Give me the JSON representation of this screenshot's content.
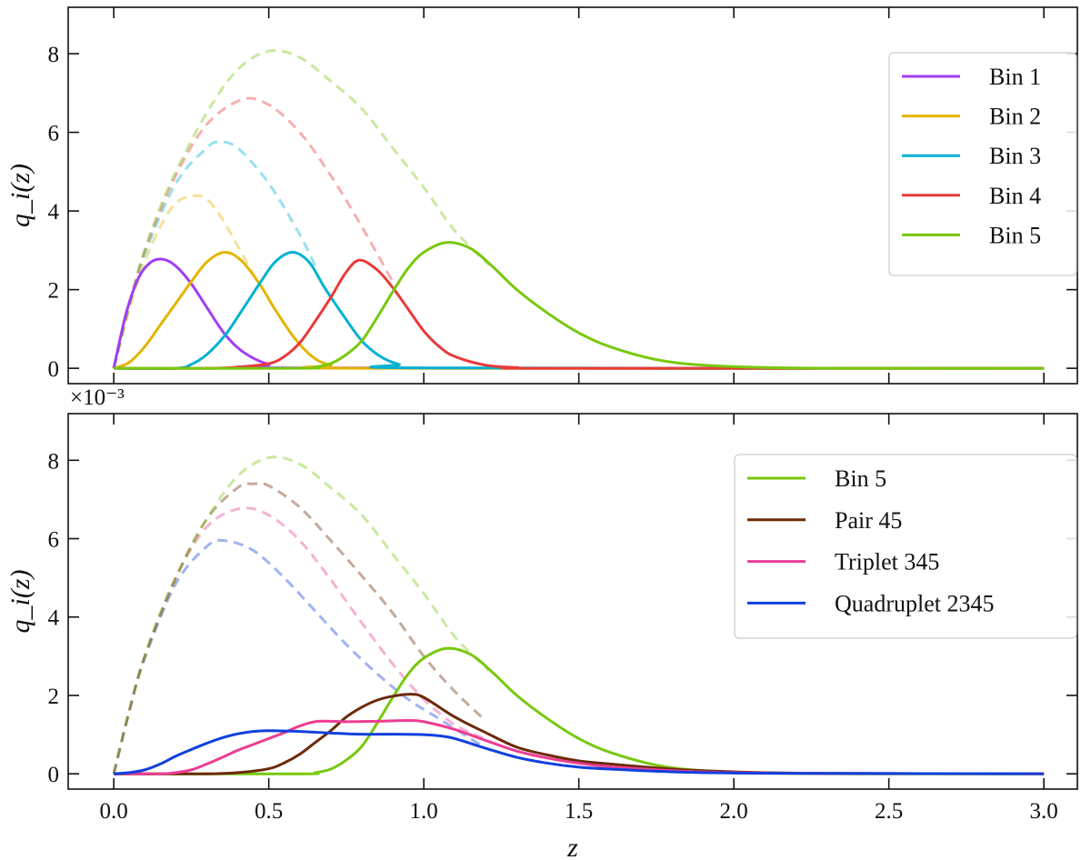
{
  "chart_data": [
    {
      "type": "line",
      "panel": "top",
      "ylabel": "q_i(z)",
      "xlabel": "",
      "offset_text": "×10⁻³",
      "xlim": [
        -0.147,
        3.108
      ],
      "ylim": [
        -0.39,
        9.18
      ],
      "xticks": [
        0.0,
        0.5,
        1.0,
        1.5,
        2.0,
        2.5,
        3.0
      ],
      "xtick_labels": [],
      "yticks": [
        0,
        2,
        4,
        6,
        8
      ],
      "ytick_labels": [
        "0",
        "2",
        "4",
        "6",
        "8"
      ],
      "grid": false,
      "legend": "top-right",
      "series": [
        {
          "name": "Bin 1",
          "color": "#a03cf5",
          "style": "solid",
          "x": [
            0,
            0.04,
            0.08,
            0.12,
            0.16,
            0.2,
            0.25,
            0.3,
            0.36,
            0.42,
            0.5,
            0.6,
            3.0
          ],
          "y": [
            0,
            1.4,
            2.3,
            2.7,
            2.77,
            2.6,
            2.15,
            1.55,
            0.85,
            0.4,
            0.1,
            0.01,
            0
          ]
        },
        {
          "name": "Bin 2",
          "color": "#e3b500",
          "style": "solid",
          "x": [
            0,
            0.05,
            0.1,
            0.15,
            0.2,
            0.25,
            0.3,
            0.357,
            0.41,
            0.47,
            0.52,
            0.58,
            0.64,
            0.7,
            0.8,
            3.0
          ],
          "y": [
            0,
            0.15,
            0.55,
            1.1,
            1.65,
            2.2,
            2.7,
            2.95,
            2.75,
            2.15,
            1.5,
            0.8,
            0.3,
            0.08,
            0,
            0
          ]
        },
        {
          "name": "Bin 3",
          "color": "#00b2d2",
          "style": "solid",
          "x": [
            0,
            0.2,
            0.25,
            0.3,
            0.36,
            0.42,
            0.47,
            0.52,
            0.576,
            0.63,
            0.68,
            0.74,
            0.8,
            0.86,
            0.92,
            1.0,
            3.0
          ],
          "y": [
            0,
            0,
            0.1,
            0.35,
            0.85,
            1.55,
            2.15,
            2.7,
            2.95,
            2.7,
            2.05,
            1.35,
            0.7,
            0.3,
            0.1,
            0.01,
            0
          ]
        },
        {
          "name": "Bin 4",
          "color": "#e83a3a",
          "style": "solid",
          "x": [
            0,
            0.3,
            0.4,
            0.5,
            0.55,
            0.6,
            0.65,
            0.7,
            0.75,
            0.793,
            0.85,
            0.9,
            0.95,
            1.0,
            1.05,
            1.1,
            1.2,
            1.3,
            1.4,
            3.0
          ],
          "y": [
            0,
            0,
            0.03,
            0.12,
            0.3,
            0.65,
            1.2,
            1.8,
            2.45,
            2.75,
            2.5,
            2.05,
            1.5,
            0.95,
            0.55,
            0.3,
            0.08,
            0.02,
            0,
            0
          ]
        },
        {
          "name": "Bin 5",
          "color": "#78c80e",
          "style": "solid",
          "x": [
            0,
            0.6,
            0.65,
            0.7,
            0.75,
            0.8,
            0.85,
            0.9,
            0.95,
            1.0,
            1.073,
            1.15,
            1.22,
            1.3,
            1.4,
            1.5,
            1.6,
            1.75,
            1.9,
            2.1,
            2.4,
            3.0
          ],
          "y": [
            0,
            0,
            0.03,
            0.12,
            0.35,
            0.7,
            1.3,
            1.95,
            2.55,
            2.95,
            3.2,
            3.05,
            2.6,
            2.0,
            1.4,
            0.9,
            0.55,
            0.22,
            0.08,
            0.02,
            0,
            0
          ]
        },
        {
          "color": "#e3b500",
          "style": "dashed",
          "x": [
            0,
            0.05,
            0.1,
            0.15,
            0.2,
            0.256,
            0.3,
            0.35,
            0.4,
            0.45
          ],
          "y": [
            0,
            1.5,
            2.7,
            3.6,
            4.2,
            4.39,
            4.3,
            3.8,
            3.1,
            2.4
          ]
        },
        {
          "color": "#00b2d2",
          "style": "dashed",
          "x": [
            0,
            0.05,
            0.1,
            0.2,
            0.3,
            0.34,
            0.4,
            0.5,
            0.6,
            0.65
          ],
          "y": [
            0,
            1.6,
            2.9,
            4.7,
            5.6,
            5.75,
            5.6,
            4.7,
            3.4,
            2.6
          ]
        },
        {
          "color": "#e83a3a",
          "style": "dashed",
          "x": [
            0,
            0.05,
            0.1,
            0.2,
            0.3,
            0.413,
            0.5,
            0.6,
            0.7,
            0.8,
            0.9
          ],
          "y": [
            0,
            1.6,
            3.0,
            4.9,
            6.2,
            6.83,
            6.7,
            6.0,
            4.9,
            3.6,
            2.2
          ]
        },
        {
          "color": "#78c80e",
          "style": "dashed",
          "x": [
            0,
            0.05,
            0.1,
            0.15,
            0.2,
            0.3,
            0.4,
            0.503,
            0.6,
            0.7,
            0.8,
            0.9,
            1.0,
            1.1,
            1.21
          ],
          "y": [
            0,
            1.6,
            3.0,
            4.1,
            5.0,
            6.5,
            7.6,
            8.07,
            7.9,
            7.3,
            6.6,
            5.6,
            4.6,
            3.5,
            2.63
          ]
        }
      ]
    },
    {
      "type": "line",
      "panel": "bottom",
      "ylabel": "q_i(z)",
      "xlabel": "z",
      "offset_text": "×10⁻³",
      "xlim": [
        -0.147,
        3.108
      ],
      "ylim": [
        -0.39,
        9.19
      ],
      "xticks": [
        0.0,
        0.5,
        1.0,
        1.5,
        2.0,
        2.5,
        3.0
      ],
      "xtick_labels": [
        "0.0",
        "0.5",
        "1.0",
        "1.5",
        "2.0",
        "2.5",
        "3.0"
      ],
      "yticks": [
        0,
        2,
        4,
        6,
        8
      ],
      "ytick_labels": [
        "0",
        "2",
        "4",
        "6",
        "8"
      ],
      "grid": false,
      "legend": "top-right",
      "series": [
        {
          "name": "Bin 5",
          "color": "#78c80e",
          "style": "solid",
          "x": [
            0,
            0.6,
            0.65,
            0.7,
            0.75,
            0.8,
            0.85,
            0.9,
            0.95,
            1.0,
            1.073,
            1.15,
            1.22,
            1.3,
            1.4,
            1.5,
            1.6,
            1.75,
            1.9,
            2.1,
            2.4,
            3.0
          ],
          "y": [
            0,
            0,
            0.03,
            0.12,
            0.35,
            0.7,
            1.3,
            1.95,
            2.55,
            2.95,
            3.2,
            3.05,
            2.6,
            2.0,
            1.4,
            0.9,
            0.55,
            0.22,
            0.08,
            0.02,
            0,
            0
          ]
        },
        {
          "name": "Pair 45",
          "color": "#6b2a08",
          "style": "solid",
          "x": [
            0,
            0.3,
            0.4,
            0.5,
            0.55,
            0.6,
            0.65,
            0.7,
            0.75,
            0.8,
            0.85,
            0.9,
            0.958,
            1.0,
            1.1,
            1.2,
            1.3,
            1.4,
            1.5,
            1.6,
            1.8,
            2.0,
            2.3,
            3.0
          ],
          "y": [
            0,
            0,
            0.03,
            0.13,
            0.28,
            0.5,
            0.8,
            1.1,
            1.45,
            1.7,
            1.88,
            1.98,
            2.03,
            1.95,
            1.45,
            1.05,
            0.68,
            0.48,
            0.33,
            0.25,
            0.12,
            0.05,
            0.01,
            0
          ]
        },
        {
          "name": "Triplet 345",
          "color": "#ec3d94",
          "style": "solid",
          "x": [
            0,
            0.15,
            0.2,
            0.25,
            0.3,
            0.35,
            0.4,
            0.45,
            0.5,
            0.55,
            0.6,
            0.66,
            0.75,
            0.85,
            0.95,
            1.0,
            1.1,
            1.2,
            1.3,
            1.4,
            1.5,
            1.6,
            1.8,
            2.0,
            2.3,
            3.0
          ],
          "y": [
            0,
            0,
            0.03,
            0.1,
            0.25,
            0.42,
            0.6,
            0.75,
            0.9,
            1.05,
            1.22,
            1.34,
            1.33,
            1.34,
            1.36,
            1.33,
            1.13,
            0.85,
            0.58,
            0.4,
            0.27,
            0.18,
            0.08,
            0.03,
            0.01,
            0
          ]
        },
        {
          "name": "Quadruplet 2345",
          "color": "#1040dc",
          "style": "solid",
          "x": [
            0,
            0.05,
            0.1,
            0.15,
            0.2,
            0.25,
            0.3,
            0.35,
            0.4,
            0.45,
            0.5,
            0.6,
            0.7,
            0.8,
            0.9,
            1.0,
            1.05,
            1.1,
            1.2,
            1.3,
            1.4,
            1.5,
            1.6,
            1.8,
            2.0,
            2.3,
            3.0
          ],
          "y": [
            0,
            0.03,
            0.1,
            0.25,
            0.45,
            0.62,
            0.78,
            0.92,
            1.02,
            1.08,
            1.1,
            1.08,
            1.04,
            1.01,
            1.01,
            1.0,
            0.97,
            0.9,
            0.65,
            0.42,
            0.27,
            0.17,
            0.12,
            0.05,
            0.02,
            0.01,
            0
          ]
        },
        {
          "color": "#1040dc",
          "style": "dashed",
          "x": [
            0,
            0.05,
            0.1,
            0.2,
            0.3,
            0.357,
            0.45,
            0.55,
            0.65,
            0.75,
            0.85,
            0.95,
            1.05,
            1.18
          ],
          "y": [
            0,
            1.6,
            2.95,
            4.85,
            5.8,
            5.95,
            5.7,
            5.0,
            4.15,
            3.3,
            2.55,
            1.9,
            1.4,
            0.75
          ]
        },
        {
          "color": "#ec3d94",
          "style": "dashed",
          "x": [
            0,
            0.05,
            0.1,
            0.2,
            0.3,
            0.408,
            0.5,
            0.6,
            0.7,
            0.8,
            0.9,
            1.0,
            1.1,
            1.19
          ],
          "y": [
            0,
            1.6,
            3.0,
            5.0,
            6.3,
            6.77,
            6.6,
            5.95,
            4.95,
            3.85,
            2.8,
            1.9,
            1.25,
            0.92
          ]
        },
        {
          "color": "#6b2a08",
          "style": "dashed",
          "x": [
            0,
            0.05,
            0.1,
            0.2,
            0.3,
            0.4,
            0.453,
            0.5,
            0.6,
            0.7,
            0.8,
            0.9,
            1.0,
            1.1,
            1.2
          ],
          "y": [
            0,
            1.6,
            3.0,
            5.0,
            6.5,
            7.3,
            7.4,
            7.35,
            6.8,
            5.95,
            5.05,
            4.1,
            3.0,
            2.1,
            1.35
          ]
        },
        {
          "color": "#78c80e",
          "style": "dashed",
          "x": [
            0,
            0.05,
            0.1,
            0.15,
            0.2,
            0.3,
            0.4,
            0.503,
            0.6,
            0.7,
            0.8,
            0.9,
            1.0,
            1.1,
            1.21
          ],
          "y": [
            0,
            1.6,
            3.0,
            4.1,
            5.0,
            6.5,
            7.6,
            8.07,
            7.9,
            7.3,
            6.6,
            5.6,
            4.6,
            3.5,
            2.63
          ]
        }
      ]
    }
  ]
}
